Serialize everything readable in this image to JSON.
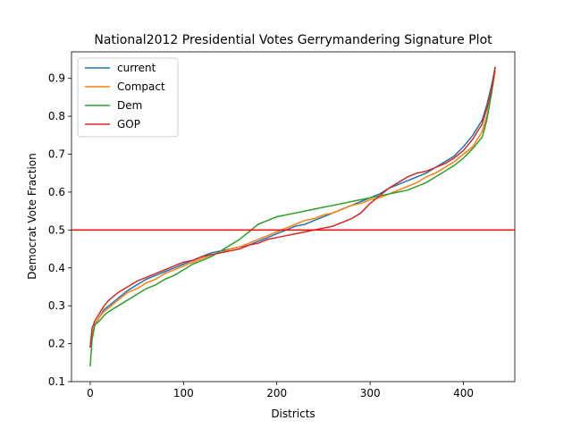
{
  "chart_data": {
    "type": "line",
    "title": "National2012 Presidential Votes Gerrymandering Signature Plot",
    "xlabel": "Districts",
    "ylabel": "Democrat Vote Fraction",
    "xlim": [
      -20,
      455
    ],
    "ylim": [
      0.1,
      0.97
    ],
    "xticks": [
      "0",
      "100",
      "200",
      "300",
      "400"
    ],
    "yticks": [
      "0.1",
      "0.2",
      "0.3",
      "0.4",
      "0.5",
      "0.6",
      "0.7",
      "0.8",
      "0.9"
    ],
    "grid": false,
    "legend_position": "upper-left",
    "reference_line": {
      "y": 0.5,
      "color": "#ff0000"
    },
    "series": [
      {
        "name": "current",
        "color": "#1f77b4",
        "x": [
          0,
          2,
          5,
          10,
          15,
          20,
          30,
          40,
          50,
          60,
          70,
          80,
          90,
          100,
          110,
          120,
          130,
          140,
          150,
          160,
          170,
          180,
          190,
          200,
          210,
          220,
          230,
          240,
          250,
          260,
          270,
          280,
          290,
          300,
          310,
          320,
          330,
          340,
          350,
          360,
          370,
          380,
          390,
          400,
          410,
          420,
          425,
          430,
          434
        ],
        "values": [
          0.19,
          0.22,
          0.25,
          0.27,
          0.29,
          0.3,
          0.32,
          0.34,
          0.355,
          0.37,
          0.38,
          0.39,
          0.4,
          0.41,
          0.42,
          0.43,
          0.44,
          0.445,
          0.45,
          0.455,
          0.46,
          0.47,
          0.48,
          0.49,
          0.5,
          0.51,
          0.515,
          0.525,
          0.535,
          0.545,
          0.555,
          0.565,
          0.575,
          0.585,
          0.595,
          0.61,
          0.62,
          0.63,
          0.64,
          0.65,
          0.665,
          0.68,
          0.695,
          0.72,
          0.75,
          0.79,
          0.83,
          0.88,
          0.93
        ]
      },
      {
        "name": "Compact",
        "color": "#ff7f0e",
        "x": [
          0,
          2,
          5,
          10,
          15,
          20,
          30,
          40,
          50,
          60,
          70,
          80,
          90,
          100,
          110,
          120,
          130,
          140,
          150,
          160,
          170,
          180,
          190,
          200,
          210,
          220,
          230,
          240,
          250,
          260,
          270,
          280,
          290,
          300,
          310,
          320,
          330,
          340,
          350,
          360,
          370,
          380,
          390,
          400,
          410,
          420,
          425,
          430,
          434
        ],
        "values": [
          0.19,
          0.22,
          0.25,
          0.27,
          0.285,
          0.295,
          0.315,
          0.335,
          0.345,
          0.36,
          0.37,
          0.385,
          0.395,
          0.405,
          0.415,
          0.425,
          0.435,
          0.44,
          0.45,
          0.455,
          0.465,
          0.475,
          0.485,
          0.495,
          0.505,
          0.515,
          0.525,
          0.53,
          0.54,
          0.545,
          0.555,
          0.565,
          0.57,
          0.58,
          0.585,
          0.595,
          0.605,
          0.615,
          0.625,
          0.64,
          0.65,
          0.665,
          0.68,
          0.7,
          0.72,
          0.76,
          0.8,
          0.86,
          0.92
        ]
      },
      {
        "name": "Dem",
        "color": "#2ca02c",
        "x": [
          0,
          2,
          5,
          10,
          15,
          20,
          30,
          40,
          50,
          60,
          70,
          80,
          90,
          100,
          110,
          120,
          130,
          140,
          150,
          160,
          170,
          180,
          190,
          200,
          210,
          220,
          230,
          240,
          250,
          260,
          270,
          280,
          290,
          300,
          310,
          320,
          330,
          340,
          350,
          360,
          370,
          380,
          390,
          400,
          410,
          420,
          425,
          430,
          434
        ],
        "values": [
          0.14,
          0.21,
          0.25,
          0.26,
          0.275,
          0.285,
          0.3,
          0.315,
          0.33,
          0.345,
          0.355,
          0.37,
          0.38,
          0.395,
          0.41,
          0.42,
          0.43,
          0.445,
          0.46,
          0.475,
          0.495,
          0.515,
          0.525,
          0.535,
          0.54,
          0.545,
          0.55,
          0.555,
          0.56,
          0.565,
          0.57,
          0.575,
          0.58,
          0.585,
          0.59,
          0.595,
          0.6,
          0.605,
          0.615,
          0.625,
          0.64,
          0.655,
          0.67,
          0.69,
          0.715,
          0.745,
          0.79,
          0.86,
          0.93
        ]
      },
      {
        "name": "GOP",
        "color": "#d62728",
        "x": [
          0,
          2,
          5,
          10,
          15,
          20,
          30,
          40,
          50,
          60,
          70,
          80,
          90,
          100,
          110,
          120,
          130,
          140,
          150,
          160,
          170,
          180,
          190,
          200,
          210,
          220,
          230,
          240,
          250,
          260,
          270,
          280,
          290,
          300,
          310,
          320,
          330,
          340,
          350,
          360,
          370,
          380,
          390,
          400,
          410,
          420,
          425,
          430,
          434
        ],
        "values": [
          0.19,
          0.24,
          0.26,
          0.28,
          0.3,
          0.315,
          0.335,
          0.35,
          0.365,
          0.375,
          0.385,
          0.395,
          0.405,
          0.415,
          0.42,
          0.43,
          0.435,
          0.44,
          0.445,
          0.45,
          0.46,
          0.465,
          0.475,
          0.48,
          0.485,
          0.49,
          0.495,
          0.5,
          0.505,
          0.51,
          0.52,
          0.53,
          0.545,
          0.57,
          0.59,
          0.61,
          0.625,
          0.64,
          0.65,
          0.655,
          0.665,
          0.675,
          0.69,
          0.71,
          0.74,
          0.78,
          0.82,
          0.87,
          0.93
        ]
      }
    ]
  }
}
